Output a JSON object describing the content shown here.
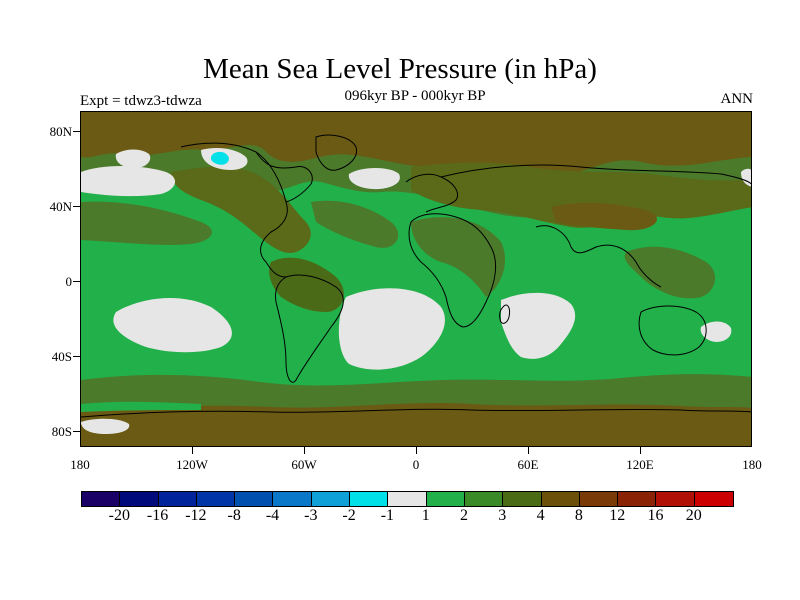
{
  "figure": {
    "title": "Mean Sea Level Pressure (in hPa)",
    "subtitle": "096kyr BP - 000kyr BP",
    "left_label": "Expt = tdwz3-tdwza",
    "right_label": "ANN"
  },
  "axes": {
    "lat_labels": [
      "80N",
      "40N",
      "0",
      "40S",
      "80S"
    ],
    "lon_labels": [
      "180",
      "120W",
      "60W",
      "0",
      "60E",
      "120E",
      "180"
    ]
  },
  "colorbar": {
    "colors": [
      "#1a0066",
      "#000a7a",
      "#00229a",
      "#0035a8",
      "#0050b0",
      "#0a78c8",
      "#10a0d8",
      "#00e0e8",
      "#e6e6e6",
      "#22b04a",
      "#3a8a28",
      "#4a6a14",
      "#6a5008",
      "#7a3a08",
      "#8a2205",
      "#b01005",
      "#cc0000"
    ],
    "labels": [
      "-20",
      "-16",
      "-12",
      "-8",
      "-4",
      "-3",
      "-2",
      "-1",
      "1",
      "2",
      "3",
      "4",
      "8",
      "12",
      "16",
      "20"
    ]
  },
  "colors": {
    "land_brown": "#6a5a14",
    "olive": "#4a7a2a",
    "ocean_green": "#22b04a",
    "near_zero": "#e6e6e6",
    "cyan": "#00e0e8"
  }
}
